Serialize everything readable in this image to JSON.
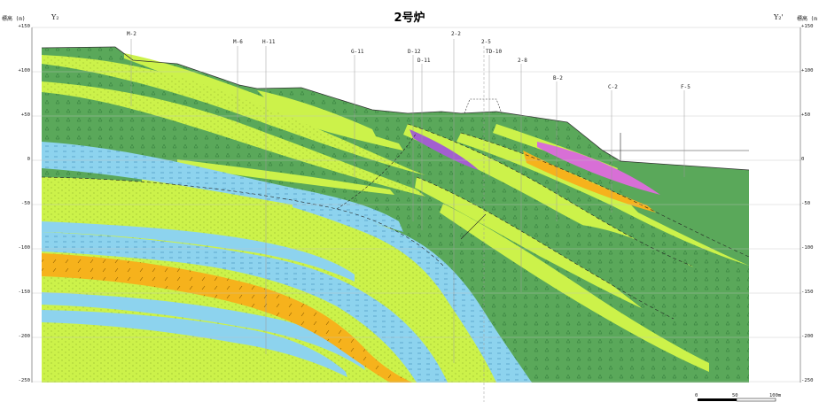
{
  "title": "2号炉",
  "axis_unit_left": "標高 (m)",
  "axis_unit_right": "標高 (m",
  "section_left_label": "Y₂",
  "section_right_label": "Y₂'",
  "elevation_labels": [
    "+150",
    "+100",
    "+50",
    "0",
    "-50",
    "-100",
    "-150",
    "-200",
    "-250"
  ],
  "boreholes": [
    "M-2",
    "M-6",
    "H-11",
    "G-11",
    "D-12",
    "D-11",
    "2-2",
    "2-5",
    "TD-10",
    "2-8",
    "B-2",
    "C-2",
    "F-5"
  ],
  "scale_labels": [
    "0",
    "50",
    "100m"
  ],
  "colors": {
    "dark_green": "#5aa85a",
    "lime": "#ccf24a",
    "blue": "#8dd3ee",
    "orange": "#f6b21c",
    "purple": "#a35fcf",
    "magenta": "#d86fd6"
  }
}
